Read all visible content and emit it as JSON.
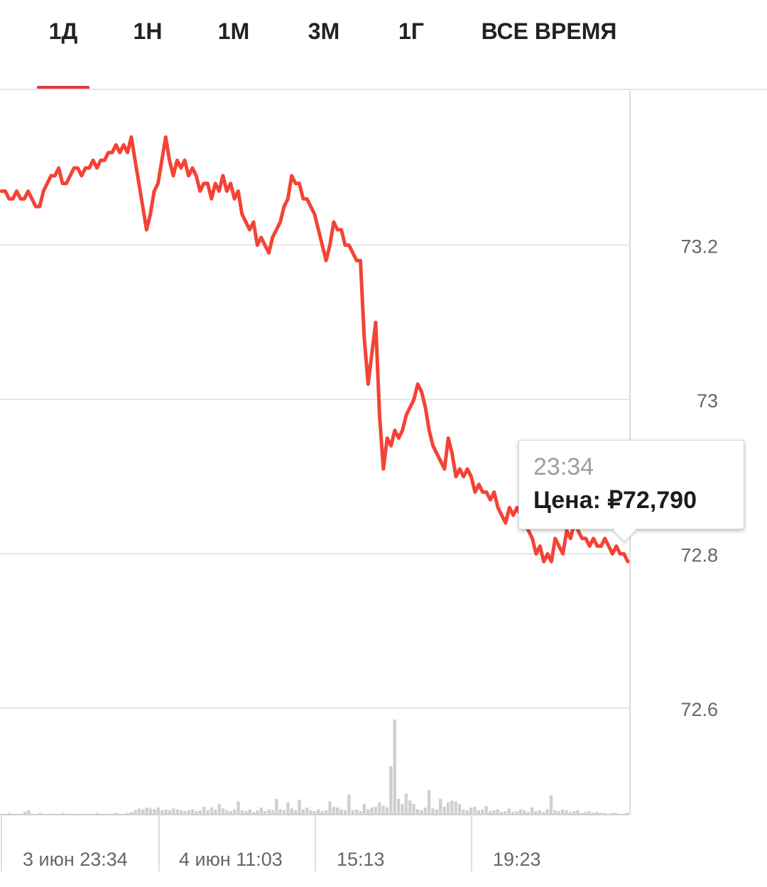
{
  "tabs": [
    {
      "label": "1Д",
      "active": true
    },
    {
      "label": "1Н",
      "active": false
    },
    {
      "label": "1М",
      "active": false
    },
    {
      "label": "3М",
      "active": false
    },
    {
      "label": "1Г",
      "active": false
    },
    {
      "label": "ВСЕ ВРЕМЯ",
      "active": false
    }
  ],
  "colors": {
    "accent": "#e5393b",
    "line": "#f44336",
    "grid": "#e6e6e6",
    "volume": "#cfcfcf",
    "axis_text": "#666666"
  },
  "tooltip": {
    "time": "23:34",
    "price": "Цена: ₽72,790"
  },
  "chart_data": {
    "type": "line",
    "title": "",
    "xlabel": "",
    "ylabel": "",
    "ylim": [
      72.46,
      73.48
    ],
    "y_ticks": [
      73.2,
      73,
      72.8,
      72.6
    ],
    "y_tick_labels": [
      "73.2",
      "73",
      "72.8",
      "72.6"
    ],
    "x_tick_labels": [
      "3 июн 23:34",
      "4 июн 11:03",
      "15:13",
      "19:23"
    ],
    "grid": true,
    "legend": "none",
    "series": [
      {
        "values": [
          73.27,
          73.27,
          73.26,
          73.26,
          73.27,
          73.26,
          73.26,
          73.27,
          73.26,
          73.25,
          73.25,
          73.27,
          73.28,
          73.29,
          73.29,
          73.3,
          73.28,
          73.28,
          73.29,
          73.3,
          73.3,
          73.29,
          73.3,
          73.3,
          73.31,
          73.3,
          73.31,
          73.31,
          73.32,
          73.32,
          73.33,
          73.32,
          73.33,
          73.32,
          73.34,
          73.31,
          73.28,
          73.25,
          73.22,
          73.24,
          73.27,
          73.28,
          73.31,
          73.34,
          73.31,
          73.29,
          73.31,
          73.3,
          73.31,
          73.29,
          73.3,
          73.29,
          73.27,
          73.28,
          73.28,
          73.26,
          73.28,
          73.27,
          73.29,
          73.27,
          73.28,
          73.26,
          73.27,
          73.24,
          73.23,
          73.22,
          73.23,
          73.2,
          73.21,
          73.2,
          73.19,
          73.21,
          73.22,
          73.23,
          73.25,
          73.26,
          73.29,
          73.28,
          73.28,
          73.26,
          73.26,
          73.25,
          73.24,
          73.22,
          73.2,
          73.18,
          73.2,
          73.23,
          73.22,
          73.22,
          73.2,
          73.2,
          73.19,
          73.18,
          73.18,
          73.08,
          73.02,
          73.06,
          73.1,
          72.98,
          72.91,
          72.95,
          72.94,
          72.96,
          72.95,
          72.96,
          72.98,
          72.99,
          73.0,
          73.02,
          73.01,
          72.99,
          72.96,
          72.94,
          72.93,
          72.92,
          72.91,
          72.95,
          72.93,
          72.9,
          72.91,
          72.9,
          72.91,
          72.9,
          72.88,
          72.89,
          72.88,
          72.88,
          72.87,
          72.88,
          72.86,
          72.85,
          72.84,
          72.86,
          72.85,
          72.86,
          72.85,
          72.84,
          72.83,
          72.82,
          72.8,
          72.81,
          72.79,
          72.8,
          72.79,
          72.82,
          72.81,
          72.8,
          72.83,
          72.82,
          72.84,
          72.83,
          72.82,
          72.82,
          72.81,
          72.82,
          72.81,
          72.81,
          72.82,
          72.81,
          72.8,
          72.81,
          72.8,
          72.8,
          72.79
        ]
      }
    ],
    "volume": [
      1,
      0,
      2,
      0,
      1,
      0,
      3,
      5,
      1,
      0,
      2,
      1,
      0,
      1,
      1,
      0,
      2,
      0,
      1,
      0,
      0,
      1,
      0,
      1,
      0,
      2,
      0,
      1,
      0,
      1,
      2,
      1,
      1,
      2,
      3,
      5,
      7,
      6,
      8,
      7,
      6,
      8,
      5,
      6,
      5,
      7,
      6,
      5,
      4,
      5,
      6,
      4,
      5,
      9,
      5,
      8,
      6,
      12,
      7,
      5,
      4,
      6,
      15,
      5,
      4,
      6,
      3,
      5,
      8,
      4,
      6,
      5,
      18,
      6,
      5,
      14,
      7,
      5,
      17,
      6,
      8,
      5,
      4,
      6,
      4,
      5,
      15,
      9,
      8,
      6,
      5,
      23,
      5,
      6,
      4,
      12,
      6,
      8,
      9,
      14,
      10,
      8,
      55,
      108,
      18,
      12,
      24,
      16,
      12,
      6,
      5,
      8,
      28,
      7,
      6,
      18,
      9,
      14,
      16,
      15,
      12,
      6,
      5,
      8,
      9,
      5,
      6,
      10,
      4,
      5,
      6,
      3,
      4,
      7,
      3,
      4,
      6,
      5,
      3,
      8,
      4,
      5,
      3,
      6,
      22,
      5,
      4,
      6,
      5,
      3,
      4,
      5,
      2,
      3,
      4,
      2,
      3,
      2,
      2,
      1,
      2,
      2,
      1,
      1,
      2
    ]
  }
}
